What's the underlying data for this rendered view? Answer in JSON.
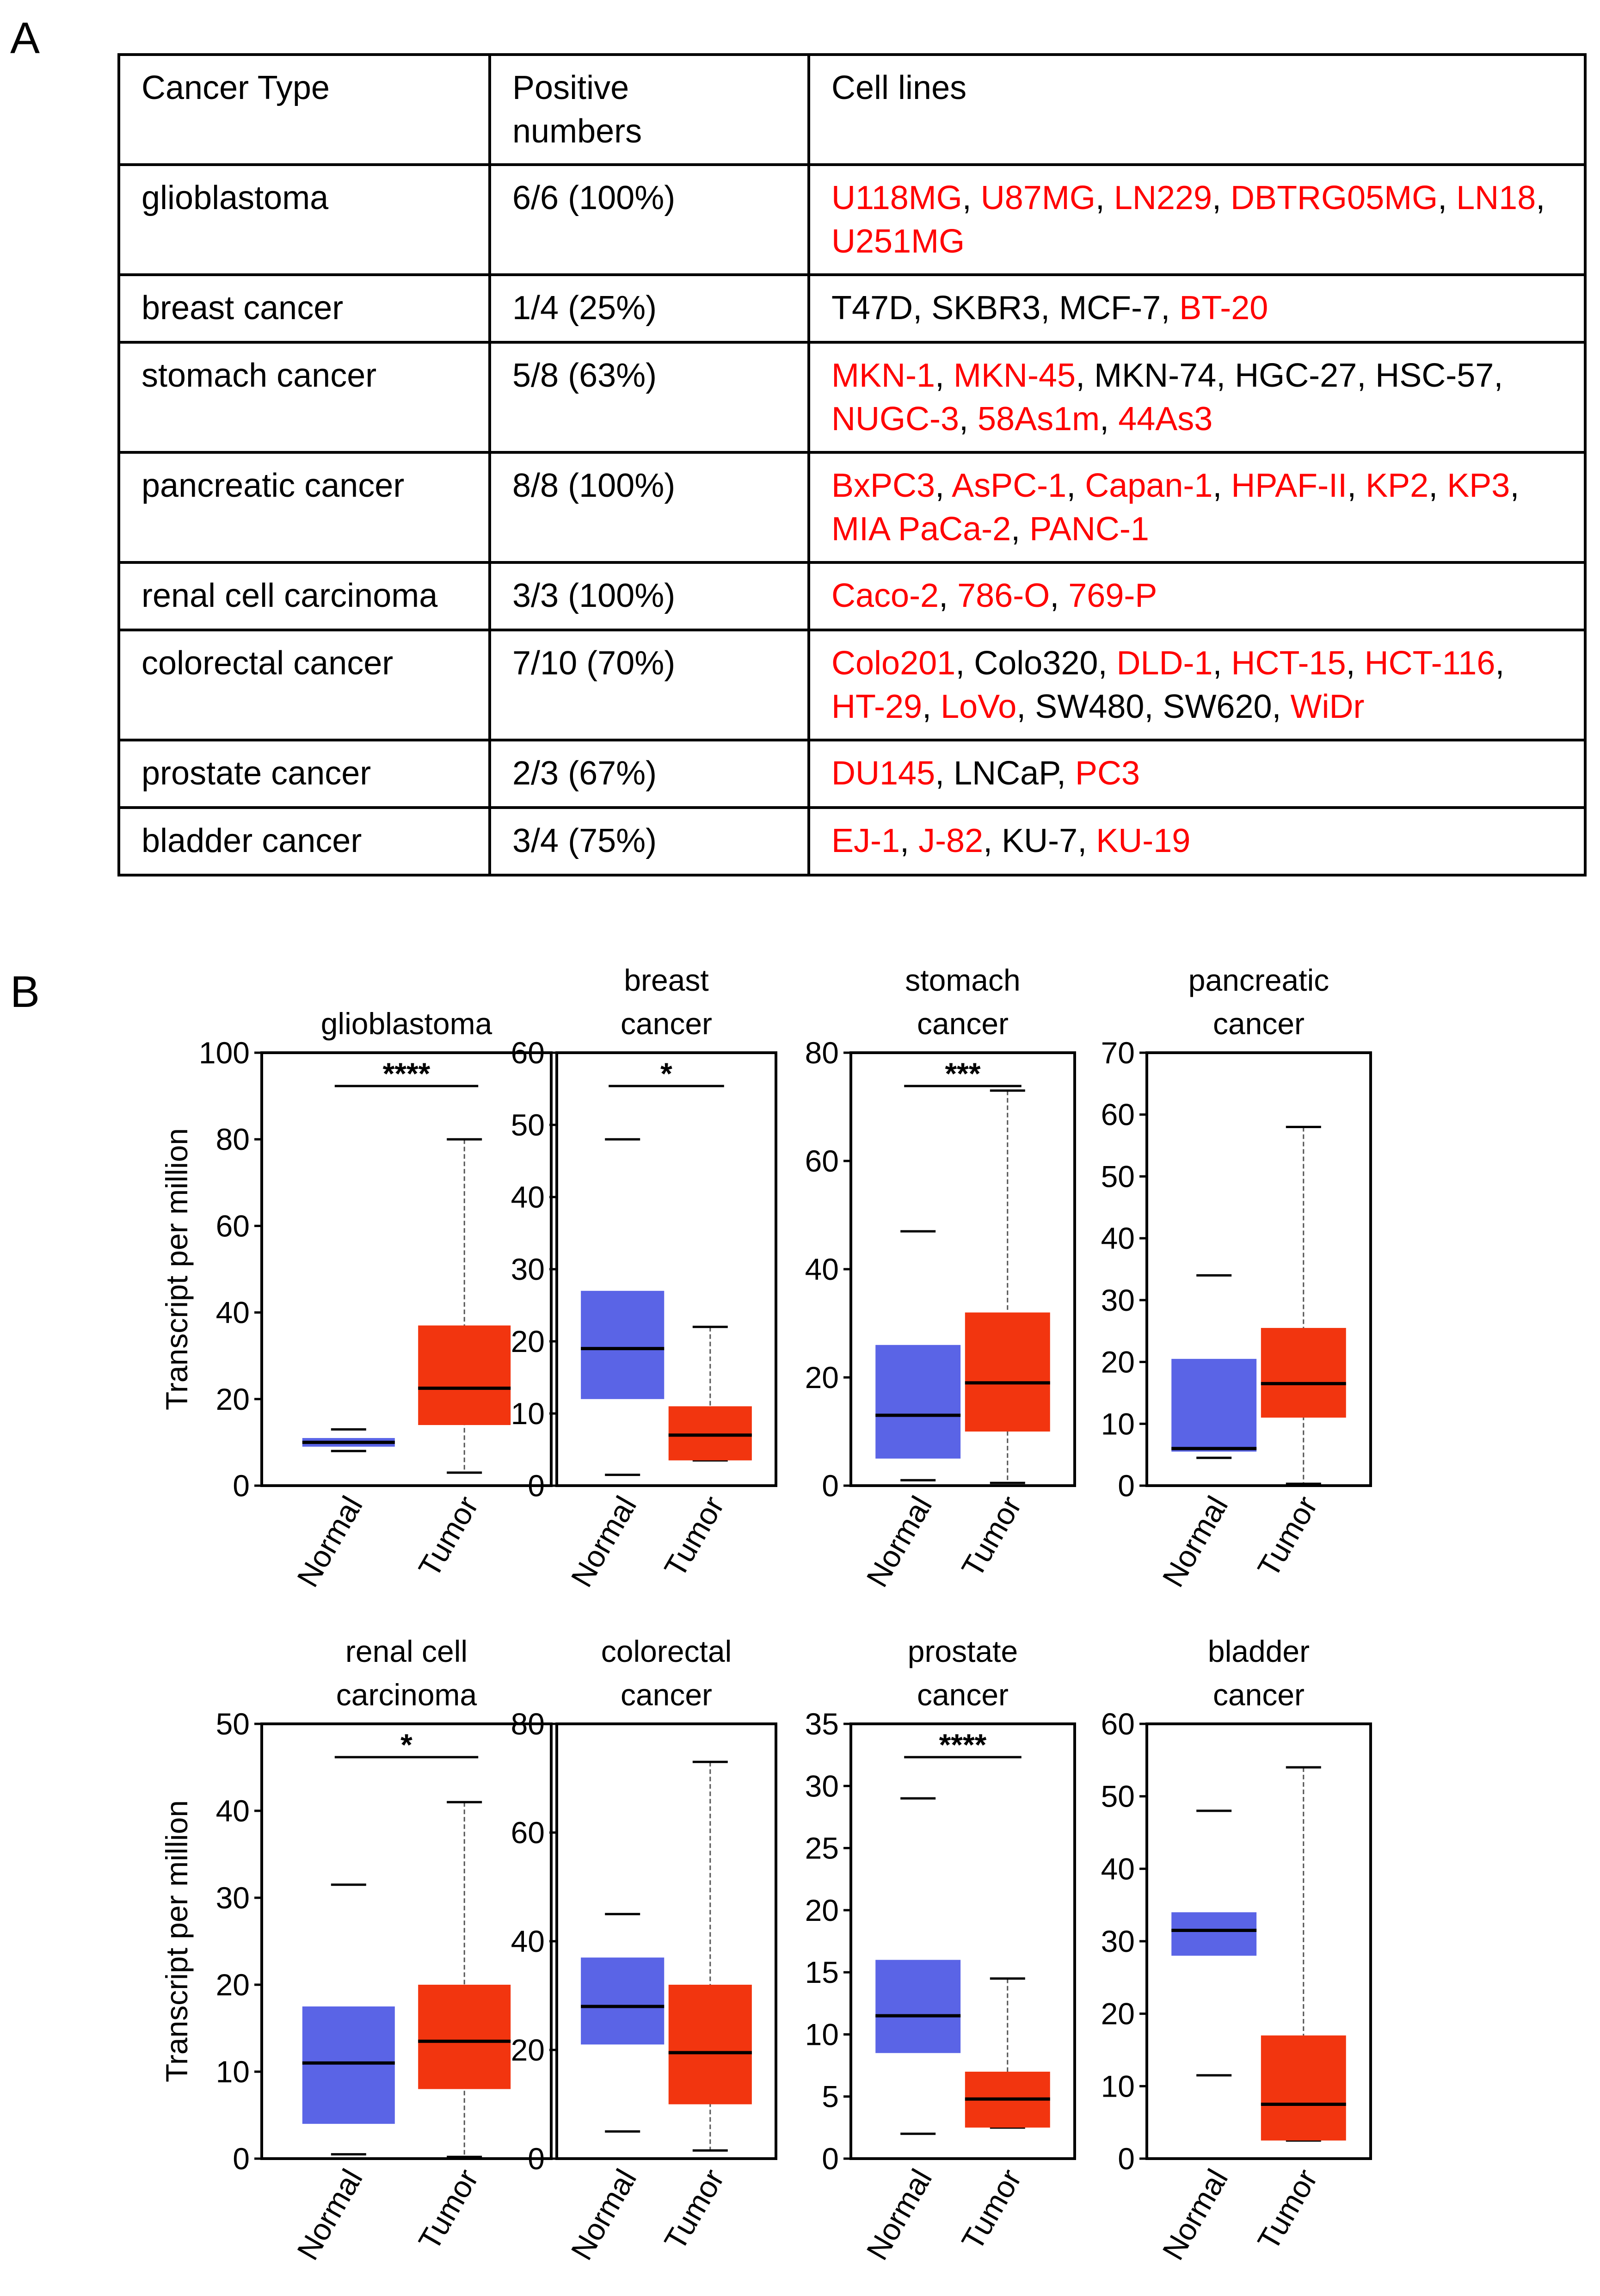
{
  "panel_a": {
    "label": "A",
    "headers": [
      "Cancer Type",
      "Positive\nnumbers",
      "Cell lines"
    ],
    "rows": [
      {
        "type": "glioblastoma",
        "positive": "6/6 (100%)",
        "cells": [
          {
            "name": "U118MG",
            "pos": true
          },
          {
            "name": "U87MG",
            "pos": true
          },
          {
            "name": "LN229",
            "pos": true
          },
          {
            "name": "DBTRG05MG",
            "pos": true
          },
          {
            "name": "LN18",
            "pos": true
          },
          {
            "name": "U251MG",
            "pos": true
          }
        ]
      },
      {
        "type": "breast cancer",
        "positive": "1/4 (25%)",
        "cells": [
          {
            "name": "T47D",
            "pos": false
          },
          {
            "name": "SKBR3",
            "pos": false
          },
          {
            "name": "MCF-7",
            "pos": false
          },
          {
            "name": "BT-20",
            "pos": true
          }
        ]
      },
      {
        "type": "stomach cancer",
        "positive": "5/8 (63%)",
        "cells": [
          {
            "name": "MKN-1",
            "pos": true
          },
          {
            "name": "MKN-45",
            "pos": true
          },
          {
            "name": "MKN-74",
            "pos": false
          },
          {
            "name": "HGC-27",
            "pos": false
          },
          {
            "name": "HSC-57",
            "pos": false
          },
          {
            "name": "NUGC-3",
            "pos": true
          },
          {
            "name": "58As1m",
            "pos": true
          },
          {
            "name": "44As3",
            "pos": true
          }
        ]
      },
      {
        "type": "pancreatic cancer",
        "positive": "8/8 (100%)",
        "cells": [
          {
            "name": "BxPC3",
            "pos": true
          },
          {
            "name": "AsPC-1",
            "pos": true
          },
          {
            "name": "Capan-1",
            "pos": true
          },
          {
            "name": "HPAF-II",
            "pos": true
          },
          {
            "name": "KP2",
            "pos": true
          },
          {
            "name": "KP3",
            "pos": true
          },
          {
            "name": "MIA PaCa-2",
            "pos": true
          },
          {
            "name": "PANC-1",
            "pos": true
          }
        ]
      },
      {
        "type": "renal cell carcinoma",
        "positive": "3/3 (100%)",
        "cells": [
          {
            "name": "Caco-2",
            "pos": true
          },
          {
            "name": "786-O",
            "pos": true
          },
          {
            "name": "769-P",
            "pos": true
          }
        ]
      },
      {
        "type": "colorectal cancer",
        "positive": "7/10 (70%)",
        "cells": [
          {
            "name": "Colo201",
            "pos": true
          },
          {
            "name": "Colo320",
            "pos": false
          },
          {
            "name": "DLD-1",
            "pos": true
          },
          {
            "name": "HCT-15",
            "pos": true
          },
          {
            "name": "HCT-116",
            "pos": true
          },
          {
            "name": "HT-29",
            "pos": true
          },
          {
            "name": "LoVo",
            "pos": true
          },
          {
            "name": "SW480",
            "pos": false
          },
          {
            "name": "SW620",
            "pos": false
          },
          {
            "name": "WiDr",
            "pos": true
          }
        ]
      },
      {
        "type": "prostate cancer",
        "positive": "2/3 (67%)",
        "cells": [
          {
            "name": "DU145",
            "pos": true
          },
          {
            "name": "LNCaP",
            "pos": false
          },
          {
            "name": "PC3",
            "pos": true
          }
        ]
      },
      {
        "type": "bladder cancer",
        "positive": "3/4 (75%)",
        "cells": [
          {
            "name": "EJ-1",
            "pos": true
          },
          {
            "name": "J-82",
            "pos": true
          },
          {
            "name": "KU-7",
            "pos": false
          },
          {
            "name": "KU-19",
            "pos": true
          }
        ]
      }
    ]
  },
  "panel_b": {
    "label": "B"
  },
  "colors": {
    "positive": "#ff0000",
    "negative": "#000000",
    "normal_box": "#5a64e6",
    "tumor_box": "#f2350f"
  },
  "chart_data": [
    {
      "type": "box",
      "title": "glioblastoma",
      "ylabel": "Transcript per million",
      "ylim": [
        0,
        100
      ],
      "yticks": [
        0,
        20,
        40,
        60,
        80,
        100
      ],
      "categories": [
        "Normal",
        "Tumor"
      ],
      "significance": "****",
      "boxes": [
        {
          "group": "Normal",
          "min": 8,
          "q1": 9,
          "median": 10,
          "q3": 11,
          "max": 13
        },
        {
          "group": "Tumor",
          "min": 3,
          "q1": 14,
          "median": 22.5,
          "q3": 37,
          "max": 80
        }
      ]
    },
    {
      "type": "box",
      "title": "breast\ncancer",
      "ylabel": "",
      "ylim": [
        0,
        60
      ],
      "yticks": [
        0,
        10,
        20,
        30,
        40,
        50,
        60
      ],
      "categories": [
        "Normal",
        "Tumor"
      ],
      "significance": "*",
      "boxes": [
        {
          "group": "Normal",
          "min": 1.5,
          "q1": 12,
          "median": 19,
          "q3": 27,
          "max": 48
        },
        {
          "group": "Tumor",
          "min": 3.5,
          "q1": 3.5,
          "median": 7,
          "q3": 11,
          "max": 22
        }
      ]
    },
    {
      "type": "box",
      "title": "stomach\ncancer",
      "ylabel": "",
      "ylim": [
        0,
        80
      ],
      "yticks": [
        0,
        20,
        40,
        60,
        80
      ],
      "categories": [
        "Normal",
        "Tumor"
      ],
      "significance": "***",
      "boxes": [
        {
          "group": "Normal",
          "min": 1,
          "q1": 5,
          "median": 13,
          "q3": 26,
          "max": 47
        },
        {
          "group": "Tumor",
          "min": 0.5,
          "q1": 10,
          "median": 19,
          "q3": 32,
          "max": 73
        }
      ]
    },
    {
      "type": "box",
      "title": "pancreatic\ncancer",
      "ylabel": "",
      "ylim": [
        0,
        70
      ],
      "yticks": [
        0,
        10,
        20,
        30,
        40,
        50,
        60,
        70
      ],
      "categories": [
        "Normal",
        "Tumor"
      ],
      "significance": "",
      "boxes": [
        {
          "group": "Normal",
          "min": 4.5,
          "q1": 5.5,
          "median": 6,
          "q3": 20.5,
          "max": 34
        },
        {
          "group": "Tumor",
          "min": 0.3,
          "q1": 11,
          "median": 16.5,
          "q3": 25.5,
          "max": 58
        }
      ]
    },
    {
      "type": "box",
      "title": "renal cell\ncarcinoma",
      "ylabel": "Transcript per million",
      "ylim": [
        0,
        50
      ],
      "yticks": [
        0,
        10,
        20,
        30,
        40,
        50
      ],
      "categories": [
        "Normal",
        "Tumor"
      ],
      "significance": "*",
      "boxes": [
        {
          "group": "Normal",
          "min": 0.5,
          "q1": 4,
          "median": 11,
          "q3": 17.5,
          "max": 31.5
        },
        {
          "group": "Tumor",
          "min": 0.2,
          "q1": 8,
          "median": 13.5,
          "q3": 20,
          "max": 41
        }
      ]
    },
    {
      "type": "box",
      "title": "colorectal\ncancer",
      "ylabel": "",
      "ylim": [
        0,
        80
      ],
      "yticks": [
        0,
        20,
        40,
        60,
        80
      ],
      "categories": [
        "Normal",
        "Tumor"
      ],
      "significance": "",
      "boxes": [
        {
          "group": "Normal",
          "min": 5,
          "q1": 21,
          "median": 28,
          "q3": 37,
          "max": 45
        },
        {
          "group": "Tumor",
          "min": 1.5,
          "q1": 10,
          "median": 19.5,
          "q3": 32,
          "max": 73
        }
      ]
    },
    {
      "type": "box",
      "title": "prostate\ncancer",
      "ylabel": "",
      "ylim": [
        0,
        35
      ],
      "yticks": [
        0,
        5,
        10,
        15,
        20,
        25,
        30,
        35
      ],
      "categories": [
        "Normal",
        "Tumor"
      ],
      "significance": "****",
      "boxes": [
        {
          "group": "Normal",
          "min": 2,
          "q1": 8.5,
          "median": 11.5,
          "q3": 16,
          "max": 29
        },
        {
          "group": "Tumor",
          "min": 2.5,
          "q1": 2.5,
          "median": 4.8,
          "q3": 7,
          "max": 14.5
        }
      ]
    },
    {
      "type": "box",
      "title": "bladder\ncancer",
      "ylabel": "",
      "ylim": [
        0,
        60
      ],
      "yticks": [
        0,
        10,
        20,
        30,
        40,
        50,
        60
      ],
      "categories": [
        "Normal",
        "Tumor"
      ],
      "significance": "",
      "boxes": [
        {
          "group": "Normal",
          "min": 11.5,
          "q1": 28,
          "median": 31.5,
          "q3": 34,
          "max": 48
        },
        {
          "group": "Tumor",
          "min": 2.5,
          "q1": 2.5,
          "median": 7.5,
          "q3": 17,
          "max": 54
        }
      ]
    }
  ]
}
